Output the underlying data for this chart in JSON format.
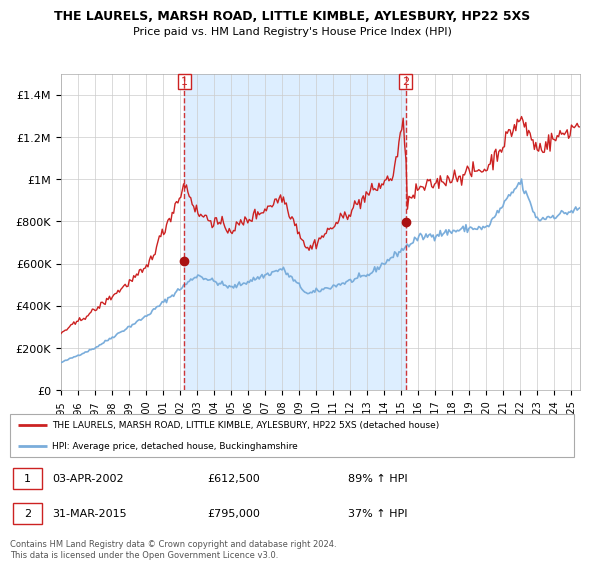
{
  "title": "THE LAURELS, MARSH ROAD, LITTLE KIMBLE, AYLESBURY, HP22 5XS",
  "subtitle": "Price paid vs. HM Land Registry's House Price Index (HPI)",
  "legend_line1": "THE LAURELS, MARSH ROAD, LITTLE KIMBLE, AYLESBURY, HP22 5XS (detached house)",
  "legend_line2": "HPI: Average price, detached house, Buckinghamshire",
  "transaction1_date": "03-APR-2002",
  "transaction1_price": 612500,
  "transaction1_year": 2002.25,
  "transaction2_date": "31-MAR-2015",
  "transaction2_price": 795000,
  "transaction2_year": 2015.25,
  "footer": "Contains HM Land Registry data © Crown copyright and database right 2024.\nThis data is licensed under the Open Government Licence v3.0.",
  "hpi_color": "#7aaddb",
  "property_color": "#cc2222",
  "dot_color": "#aa1111",
  "span_color": "#ddeeff",
  "plot_bg": "#ffffff",
  "grid_color": "#cccccc",
  "ylim": [
    0,
    1500000
  ],
  "xlim_start": 1995,
  "xlim_end": 2025.5,
  "ylabel_ticks": [
    0,
    200000,
    400000,
    600000,
    800000,
    1000000,
    1200000,
    1400000
  ],
  "ytick_labels": [
    "£0",
    "£200K",
    "£400K",
    "£600K",
    "£800K",
    "£1M",
    "£1.2M",
    "£1.4M"
  ]
}
